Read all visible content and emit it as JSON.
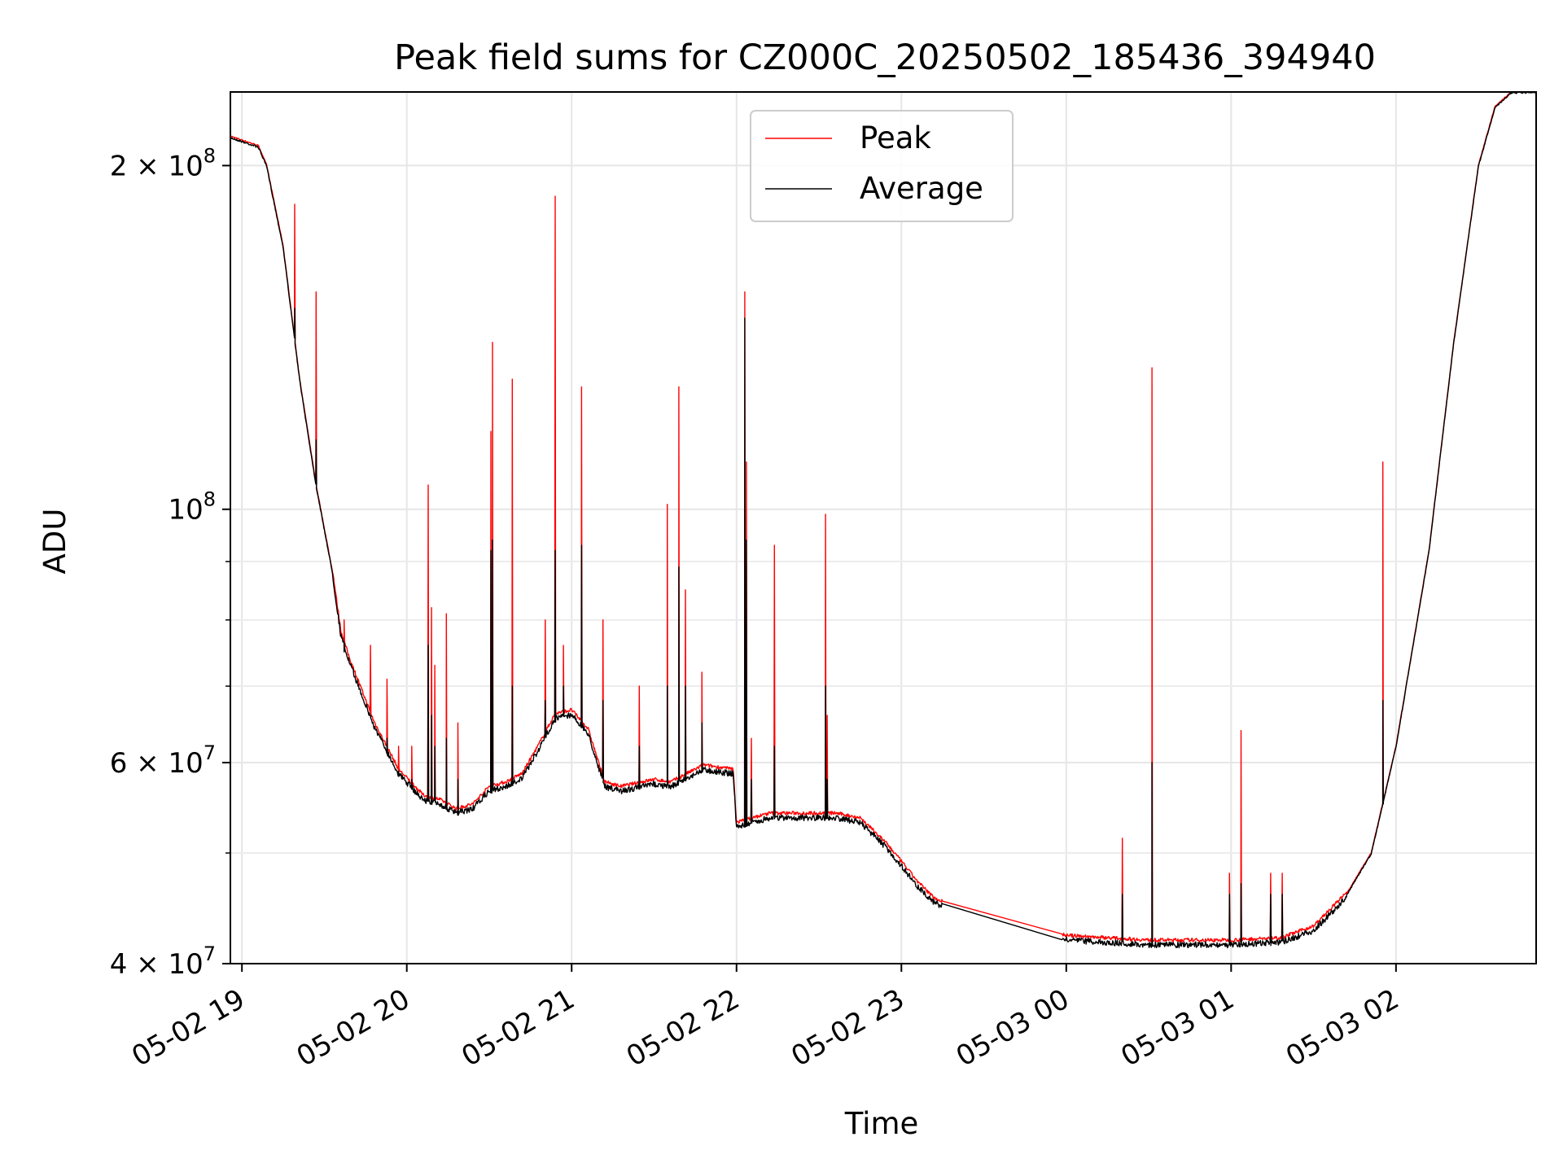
{
  "chart_data": {
    "type": "line",
    "title": "Peak field sums for CZ000C_20250502_185436_394940",
    "xlabel": "Time",
    "ylabel": "ADU",
    "yscale": "log",
    "ylim": [
      40000000,
      232000000
    ],
    "xlim_hours": [
      -0.07,
      7.85
    ],
    "grid": true,
    "legend_position": "top-center",
    "x_ticks": [
      {
        "label": "05-02 19",
        "hour": 0
      },
      {
        "label": "05-02 20",
        "hour": 1
      },
      {
        "label": "05-02 21",
        "hour": 2
      },
      {
        "label": "05-02 22",
        "hour": 3
      },
      {
        "label": "05-02 23",
        "hour": 4
      },
      {
        "label": "05-03 00",
        "hour": 5
      },
      {
        "label": "05-03 01",
        "hour": 6
      },
      {
        "label": "05-03 02",
        "hour": 7
      }
    ],
    "y_ticks": [
      {
        "label_mantissa": "4 × 10",
        "exponent": "7",
        "value": 40000000
      },
      {
        "label_mantissa": "6 × 10",
        "exponent": "7",
        "value": 60000000
      },
      {
        "label_mantissa": "10",
        "exponent": "8",
        "value": 100000000
      },
      {
        "label_mantissa": "2 × 10",
        "exponent": "8",
        "value": 200000000
      }
    ],
    "y_minor_ticks": [
      50000000,
      70000000,
      80000000,
      90000000
    ],
    "series": [
      {
        "name": "Peak",
        "color": "#ff0000"
      },
      {
        "name": "Average",
        "color": "#000000"
      }
    ],
    "baseline": [
      [
        -0.07,
        212000000
      ],
      [
        0.1,
        208000000
      ],
      [
        0.15,
        200000000
      ],
      [
        0.25,
        170000000
      ],
      [
        0.35,
        130000000
      ],
      [
        0.45,
        105000000
      ],
      [
        0.55,
        88000000
      ],
      [
        0.6,
        78000000
      ],
      [
        0.65,
        74000000
      ],
      [
        0.8,
        65000000
      ],
      [
        0.95,
        59000000
      ],
      [
        1.1,
        56000000
      ],
      [
        1.2,
        55500000
      ],
      [
        1.3,
        54500000
      ],
      [
        1.4,
        55000000
      ],
      [
        1.5,
        57000000
      ],
      [
        1.6,
        57500000
      ],
      [
        1.7,
        58500000
      ],
      [
        1.8,
        62000000
      ],
      [
        1.9,
        66000000
      ],
      [
        2.0,
        66500000
      ],
      [
        2.1,
        64000000
      ],
      [
        2.2,
        57500000
      ],
      [
        2.3,
        57000000
      ],
      [
        2.5,
        57800000
      ],
      [
        2.6,
        57500000
      ],
      [
        2.7,
        58500000
      ],
      [
        2.8,
        59500000
      ],
      [
        2.98,
        59000000
      ],
      [
        3.0,
        53000000
      ],
      [
        3.2,
        54000000
      ],
      [
        3.6,
        54000000
      ],
      [
        3.75,
        53500000
      ],
      [
        3.9,
        51000000
      ],
      [
        4.0,
        49000000
      ],
      [
        4.1,
        47000000
      ],
      [
        4.2,
        45500000
      ],
      [
        4.25,
        45200000
      ],
      [
        4.5,
        44000000
      ],
      [
        5.0,
        42200000
      ],
      [
        5.5,
        41800000
      ],
      [
        6.0,
        41800000
      ],
      [
        6.3,
        42000000
      ],
      [
        6.5,
        43000000
      ],
      [
        6.7,
        46000000
      ],
      [
        6.85,
        50000000
      ],
      [
        7.0,
        62000000
      ],
      [
        7.2,
        92000000
      ],
      [
        7.35,
        140000000
      ],
      [
        7.5,
        200000000
      ],
      [
        7.6,
        225000000
      ],
      [
        7.7,
        232000000
      ],
      [
        7.85,
        232000000
      ]
    ],
    "spikes": [
      {
        "hour": 0.32,
        "peak": 185000000,
        "average": 150000000
      },
      {
        "hour": 0.45,
        "peak": 155000000,
        "average": 115000000
      },
      {
        "hour": 0.62,
        "peak": 80000000,
        "average": 75000000
      },
      {
        "hour": 0.78,
        "peak": 76000000,
        "average": 66000000
      },
      {
        "hour": 0.88,
        "peak": 71000000,
        "average": 63000000
      },
      {
        "hour": 0.95,
        "peak": 62000000,
        "average": 59000000
      },
      {
        "hour": 1.03,
        "peak": 62000000,
        "average": 58000000
      },
      {
        "hour": 1.13,
        "peak": 105000000,
        "average": 76000000
      },
      {
        "hour": 1.15,
        "peak": 82000000,
        "average": 66000000
      },
      {
        "hour": 1.17,
        "peak": 73000000,
        "average": 62000000
      },
      {
        "hour": 1.24,
        "peak": 81000000,
        "average": 63000000
      },
      {
        "hour": 1.31,
        "peak": 65000000,
        "average": 58000000
      },
      {
        "hour": 1.51,
        "peak": 117000000,
        "average": 92000000
      },
      {
        "hour": 1.52,
        "peak": 140000000,
        "average": 94000000
      },
      {
        "hour": 1.64,
        "peak": 130000000,
        "average": 70000000
      },
      {
        "hour": 1.84,
        "peak": 80000000,
        "average": 68000000
      },
      {
        "hour": 1.9,
        "peak": 188000000,
        "average": 92000000
      },
      {
        "hour": 1.95,
        "peak": 76000000,
        "average": 70000000
      },
      {
        "hour": 2.06,
        "peak": 128000000,
        "average": 93000000
      },
      {
        "hour": 2.19,
        "peak": 80000000,
        "average": 68000000
      },
      {
        "hour": 2.41,
        "peak": 70000000,
        "average": 62000000
      },
      {
        "hour": 2.58,
        "peak": 101000000,
        "average": 70000000
      },
      {
        "hour": 2.65,
        "peak": 128000000,
        "average": 89000000
      },
      {
        "hour": 2.69,
        "peak": 85000000,
        "average": 70000000
      },
      {
        "hour": 2.79,
        "peak": 72000000,
        "average": 65000000
      },
      {
        "hour": 3.05,
        "peak": 155000000,
        "average": 147000000
      },
      {
        "hour": 3.06,
        "peak": 110000000,
        "average": 94000000
      },
      {
        "hour": 3.09,
        "peak": 63000000,
        "average": 58000000
      },
      {
        "hour": 3.23,
        "peak": 93000000,
        "average": 62000000
      },
      {
        "hour": 3.54,
        "peak": 99000000,
        "average": 70000000
      },
      {
        "hour": 3.55,
        "peak": 66000000,
        "average": 58000000
      },
      {
        "hour": 5.34,
        "peak": 51500000,
        "average": 46000000
      },
      {
        "hour": 5.52,
        "peak": 133000000,
        "average": 60000000
      },
      {
        "hour": 5.99,
        "peak": 48000000,
        "average": 46000000
      },
      {
        "hour": 6.06,
        "peak": 64000000,
        "average": 47000000
      },
      {
        "hour": 6.24,
        "peak": 48000000,
        "average": 46000000
      },
      {
        "hour": 6.31,
        "peak": 48000000,
        "average": 46000000
      },
      {
        "hour": 6.92,
        "peak": 110000000,
        "average": 68000000
      }
    ]
  }
}
